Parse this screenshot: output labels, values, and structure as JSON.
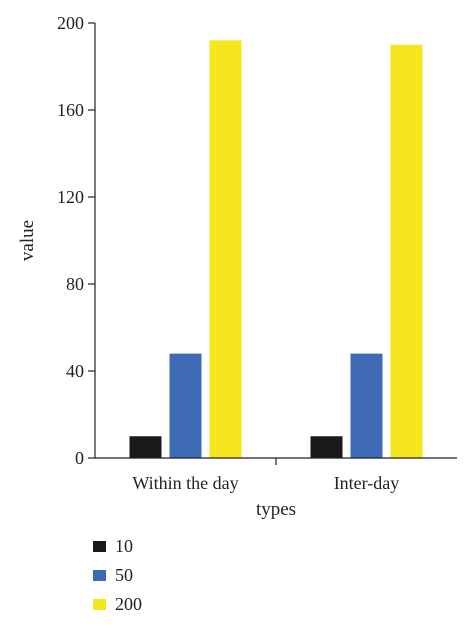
{
  "chart_data": {
    "type": "bar",
    "title": "",
    "xlabel": "types",
    "ylabel": "value",
    "categories": [
      "Within the day",
      "Inter-day"
    ],
    "series": [
      {
        "name": "10",
        "color": "#1a1a1a",
        "values": [
          10,
          10
        ]
      },
      {
        "name": "50",
        "color": "#3f6ab5",
        "values": [
          48,
          48
        ]
      },
      {
        "name": "200",
        "color": "#f5e61e",
        "values": [
          192,
          190
        ]
      }
    ],
    "ylim": [
      0,
      200
    ],
    "yticks": [
      "0",
      "40",
      "80",
      "120",
      "160",
      "200"
    ],
    "grid": false,
    "legend_position": "bottom-left"
  }
}
